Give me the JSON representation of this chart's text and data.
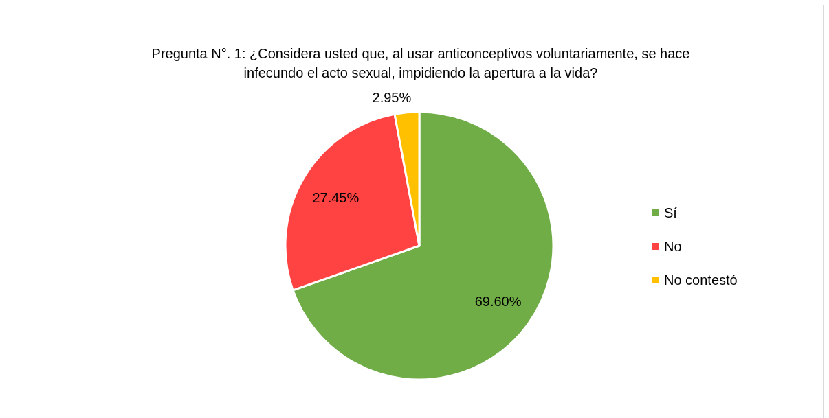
{
  "chart_data": {
    "type": "pie",
    "title": "Pregunta N°. 1: ¿Considera usted que, al usar anticonceptivos voluntariamente, se hace infecundo el acto sexual, impidiendo la apertura a la vida?",
    "categories": [
      "Sí",
      "No",
      "No contestó"
    ],
    "values": [
      69.6,
      27.45,
      2.95
    ],
    "colors": [
      "#70ad47",
      "#ff4343",
      "#ffc000"
    ],
    "value_labels": [
      "69.60%",
      "27.45%",
      "2.95%"
    ],
    "legend": "right"
  }
}
